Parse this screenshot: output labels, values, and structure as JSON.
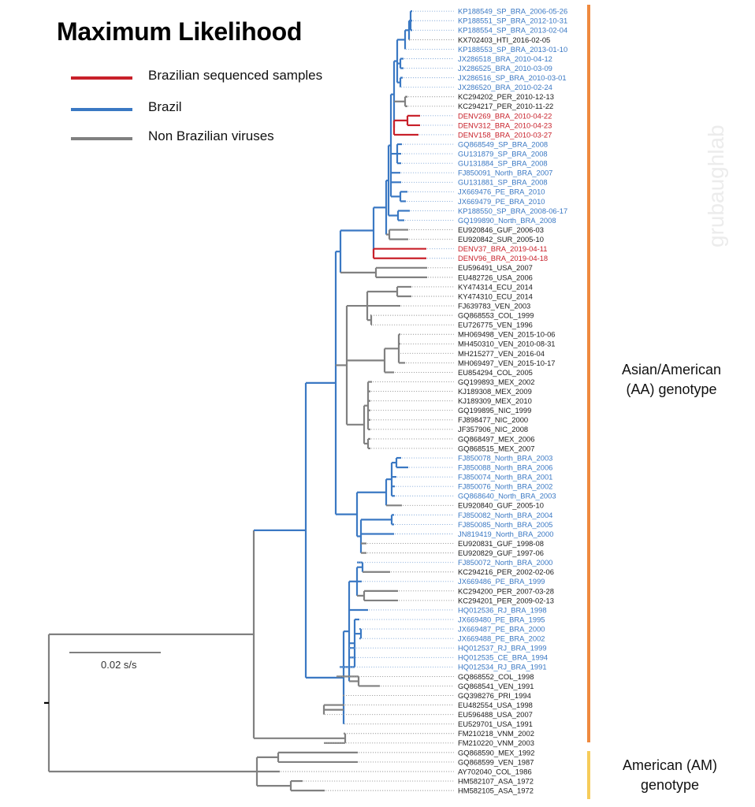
{
  "title": "Maximum Likelihood",
  "colors": {
    "brazilian_sequenced": "#c8202a",
    "brazil": "#3a78c3",
    "non_brazilian": "#808080",
    "aa_bar": "#ef8a3f",
    "am_bar": "#f6cc5a",
    "tip_black": "#1a1a1a"
  },
  "legend": [
    {
      "label": "Brazilian sequenced samples",
      "color_key": "brazilian_sequenced"
    },
    {
      "label": "Brazil",
      "color_key": "brazil"
    },
    {
      "label": "Non Brazilian viruses",
      "color_key": "non_brazilian"
    }
  ],
  "scale_bar": {
    "label": "0.02 s/s"
  },
  "clades": {
    "aa": "Asian/American\n(AA) genotype",
    "am": "American (AM)\ngenotype"
  },
  "watermark": "grubaughlab",
  "tips": [
    {
      "label": "KP188549_SP_BRA_2006-05-26",
      "group": "brazil"
    },
    {
      "label": "KP188551_SP_BRA_2012-10-31",
      "group": "brazil"
    },
    {
      "label": "KP188554_SP_BRA_2013-02-04",
      "group": "brazil"
    },
    {
      "label": "KX702403_HTI_2016-02-05",
      "group": "other"
    },
    {
      "label": "KP188553_SP_BRA_2013-01-10",
      "group": "brazil"
    },
    {
      "label": "JX286518_BRA_2010-04-12",
      "group": "brazil"
    },
    {
      "label": "JX286525_BRA_2010-03-09",
      "group": "brazil"
    },
    {
      "label": "JX286516_SP_BRA_2010-03-01",
      "group": "brazil"
    },
    {
      "label": "JX286520_BRA_2010-02-24",
      "group": "brazil"
    },
    {
      "label": "KC294202_PER_2010-12-13",
      "group": "other"
    },
    {
      "label": "KC294217_PER_2010-11-22",
      "group": "other"
    },
    {
      "label": "DENV269_BRA_2010-04-22",
      "group": "sequenced"
    },
    {
      "label": "DENV312_BRA_2010-04-23",
      "group": "sequenced"
    },
    {
      "label": "DENV158_BRA_2010-03-27",
      "group": "sequenced"
    },
    {
      "label": "GQ868549_SP_BRA_2008",
      "group": "brazil"
    },
    {
      "label": "GU131879_SP_BRA_2008",
      "group": "brazil"
    },
    {
      "label": "GU131884_SP_BRA_2008",
      "group": "brazil"
    },
    {
      "label": "FJ850091_North_BRA_2007",
      "group": "brazil"
    },
    {
      "label": "GU131881_SP_BRA_2008",
      "group": "brazil"
    },
    {
      "label": "JX669476_PE_BRA_2010",
      "group": "brazil"
    },
    {
      "label": "JX669479_PE_BRA_2010",
      "group": "brazil"
    },
    {
      "label": "KP188550_SP_BRA_2008-06-17",
      "group": "brazil"
    },
    {
      "label": "GQ199890_North_BRA_2008",
      "group": "brazil"
    },
    {
      "label": "EU920846_GUF_2006-03",
      "group": "other"
    },
    {
      "label": "EU920842_SUR_2005-10",
      "group": "other"
    },
    {
      "label": "DENV37_BRA_2019-04-11",
      "group": "sequenced"
    },
    {
      "label": "DENV96_BRA_2019-04-18",
      "group": "sequenced"
    },
    {
      "label": "EU596491_USA_2007",
      "group": "other"
    },
    {
      "label": "EU482726_USA_2006",
      "group": "other"
    },
    {
      "label": "KY474314_ECU_2014",
      "group": "other"
    },
    {
      "label": "KY474310_ECU_2014",
      "group": "other"
    },
    {
      "label": "FJ639783_VEN_2003",
      "group": "other"
    },
    {
      "label": "GQ868553_COL_1999",
      "group": "other"
    },
    {
      "label": "EU726775_VEN_1996",
      "group": "other"
    },
    {
      "label": "MH069498_VEN_2015-10-06",
      "group": "other"
    },
    {
      "label": "MH450310_VEN_2010-08-31",
      "group": "other"
    },
    {
      "label": "MH215277_VEN_2016-04",
      "group": "other"
    },
    {
      "label": "MH069497_VEN_2015-10-17",
      "group": "other"
    },
    {
      "label": "EU854294_COL_2005",
      "group": "other"
    },
    {
      "label": "GQ199893_MEX_2002",
      "group": "other"
    },
    {
      "label": "KJ189308_MEX_2009",
      "group": "other"
    },
    {
      "label": "KJ189309_MEX_2010",
      "group": "other"
    },
    {
      "label": "GQ199895_NIC_1999",
      "group": "other"
    },
    {
      "label": "FJ898477_NIC_2000",
      "group": "other"
    },
    {
      "label": "JF357906_NIC_2008",
      "group": "other"
    },
    {
      "label": "GQ868497_MEX_2006",
      "group": "other"
    },
    {
      "label": "GQ868515_MEX_2007",
      "group": "other"
    },
    {
      "label": "FJ850078_North_BRA_2003",
      "group": "brazil"
    },
    {
      "label": "FJ850088_North_BRA_2006",
      "group": "brazil"
    },
    {
      "label": "FJ850074_North_BRA_2001",
      "group": "brazil"
    },
    {
      "label": "FJ850076_North_BRA_2002",
      "group": "brazil"
    },
    {
      "label": "GQ868640_North_BRA_2003",
      "group": "brazil"
    },
    {
      "label": "EU920840_GUF_2005-10",
      "group": "other"
    },
    {
      "label": "FJ850082_North_BRA_2004",
      "group": "brazil"
    },
    {
      "label": "FJ850085_North_BRA_2005",
      "group": "brazil"
    },
    {
      "label": "JN819419_North_BRA_2000",
      "group": "brazil"
    },
    {
      "label": "EU920831_GUF_1998-08",
      "group": "other"
    },
    {
      "label": "EU920829_GUF_1997-06",
      "group": "other"
    },
    {
      "label": "FJ850072_North_BRA_2000",
      "group": "brazil"
    },
    {
      "label": "KC294216_PER_2002-02-06",
      "group": "other"
    },
    {
      "label": "JX669486_PE_BRA_1999",
      "group": "brazil"
    },
    {
      "label": "KC294200_PER_2007-03-28",
      "group": "other"
    },
    {
      "label": "KC294201_PER_2009-02-13",
      "group": "other"
    },
    {
      "label": "HQ012536_RJ_BRA_1998",
      "group": "brazil"
    },
    {
      "label": "JX669480_PE_BRA_1995",
      "group": "brazil"
    },
    {
      "label": "JX669487_PE_BRA_2000",
      "group": "brazil"
    },
    {
      "label": "JX669488_PE_BRA_2002",
      "group": "brazil"
    },
    {
      "label": "HQ012537_RJ_BRA_1999",
      "group": "brazil"
    },
    {
      "label": "HQ012535_CE_BRA_1994",
      "group": "brazil"
    },
    {
      "label": "HQ012534_RJ_BRA_1991",
      "group": "brazil"
    },
    {
      "label": "GQ868552_COL_1998",
      "group": "other"
    },
    {
      "label": "GQ868541_VEN_1991",
      "group": "other"
    },
    {
      "label": "GQ398276_PRI_1994",
      "group": "other"
    },
    {
      "label": "EU482554_USA_1998",
      "group": "other"
    },
    {
      "label": "EU596488_USA_2007",
      "group": "other"
    },
    {
      "label": "EU529701_USA_1991",
      "group": "other"
    },
    {
      "label": "FM210218_VNM_2002",
      "group": "other"
    },
    {
      "label": "FM210220_VNM_2003",
      "group": "other"
    },
    {
      "label": "GQ868590_MEX_1992",
      "group": "other"
    },
    {
      "label": "GQ868599_VEN_1987",
      "group": "other"
    },
    {
      "label": "AY702040_COL_1986",
      "group": "other"
    },
    {
      "label": "HM582107_ASA_1972",
      "group": "other"
    },
    {
      "label": "HM582105_ASA_1972",
      "group": "other"
    }
  ]
}
